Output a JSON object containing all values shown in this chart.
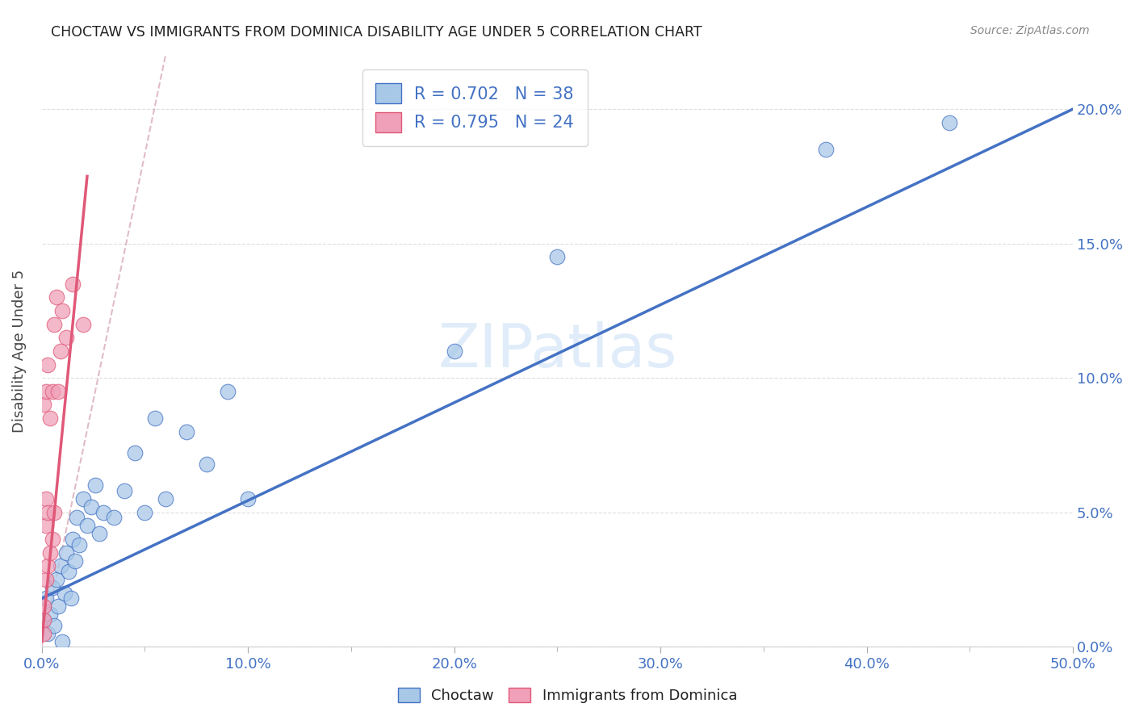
{
  "title": "CHOCTAW VS IMMIGRANTS FROM DOMINICA DISABILITY AGE UNDER 5 CORRELATION CHART",
  "source": "Source: ZipAtlas.com",
  "xlabel_label": "Choctaw",
  "xlabel_label2": "Immigrants from Dominica",
  "ylabel": "Disability Age Under 5",
  "r1": 0.702,
  "n1": 38,
  "r2": 0.795,
  "n2": 24,
  "choctaw_x": [
    0.001,
    0.002,
    0.003,
    0.004,
    0.005,
    0.006,
    0.007,
    0.008,
    0.009,
    0.01,
    0.011,
    0.012,
    0.013,
    0.014,
    0.015,
    0.016,
    0.017,
    0.018,
    0.02,
    0.022,
    0.024,
    0.026,
    0.028,
    0.03,
    0.035,
    0.04,
    0.045,
    0.05,
    0.055,
    0.06,
    0.07,
    0.08,
    0.09,
    0.1,
    0.2,
    0.25,
    0.38,
    0.44
  ],
  "choctaw_y": [
    0.01,
    0.018,
    0.005,
    0.012,
    0.022,
    0.008,
    0.025,
    0.015,
    0.03,
    0.002,
    0.02,
    0.035,
    0.028,
    0.018,
    0.04,
    0.032,
    0.048,
    0.038,
    0.055,
    0.045,
    0.052,
    0.06,
    0.042,
    0.05,
    0.048,
    0.058,
    0.072,
    0.05,
    0.085,
    0.055,
    0.08,
    0.068,
    0.095,
    0.055,
    0.11,
    0.145,
    0.185,
    0.195
  ],
  "dominica_x": [
    0.001,
    0.001,
    0.001,
    0.001,
    0.002,
    0.002,
    0.002,
    0.002,
    0.003,
    0.003,
    0.003,
    0.004,
    0.004,
    0.005,
    0.005,
    0.006,
    0.006,
    0.007,
    0.008,
    0.009,
    0.01,
    0.012,
    0.015,
    0.02
  ],
  "dominica_y": [
    0.005,
    0.01,
    0.015,
    0.09,
    0.025,
    0.045,
    0.055,
    0.095,
    0.03,
    0.05,
    0.105,
    0.035,
    0.085,
    0.04,
    0.095,
    0.05,
    0.12,
    0.13,
    0.095,
    0.11,
    0.125,
    0.115,
    0.135,
    0.12
  ],
  "color_blue": "#a8c8e8",
  "color_pink": "#f0a0b8",
  "color_line_blue": "#4472c4",
  "color_line_pink": "#e05878",
  "color_text_blue": "#4472c4",
  "color_text_orange": "#ed7d31",
  "watermark": "ZIPatlas",
  "xlim": [
    0.0,
    0.5
  ],
  "ylim": [
    0.0,
    0.22
  ],
  "xtick_vals": [
    0.0,
    0.1,
    0.2,
    0.3,
    0.4,
    0.5
  ],
  "xtick_labels": [
    "0.0%",
    "10.0%",
    "20.0%",
    "30.0%",
    "40.0%",
    "50.0%"
  ],
  "ytick_vals": [
    0.0,
    0.05,
    0.1,
    0.15,
    0.2
  ],
  "ytick_right_labels": [
    "0.0%",
    "5.0%",
    "10.0%",
    "15.0%",
    "20.0%"
  ],
  "blue_line_x0": 0.0,
  "blue_line_y0": 0.018,
  "blue_line_x1": 0.5,
  "blue_line_y1": 0.2,
  "pink_line_x0": 0.0,
  "pink_line_y0": 0.002,
  "pink_line_x1": 0.022,
  "pink_line_y1": 0.175,
  "dash_line_x0": 0.0,
  "dash_line_y0": 0.0,
  "dash_line_x1": 0.06,
  "dash_line_y1": 0.22
}
